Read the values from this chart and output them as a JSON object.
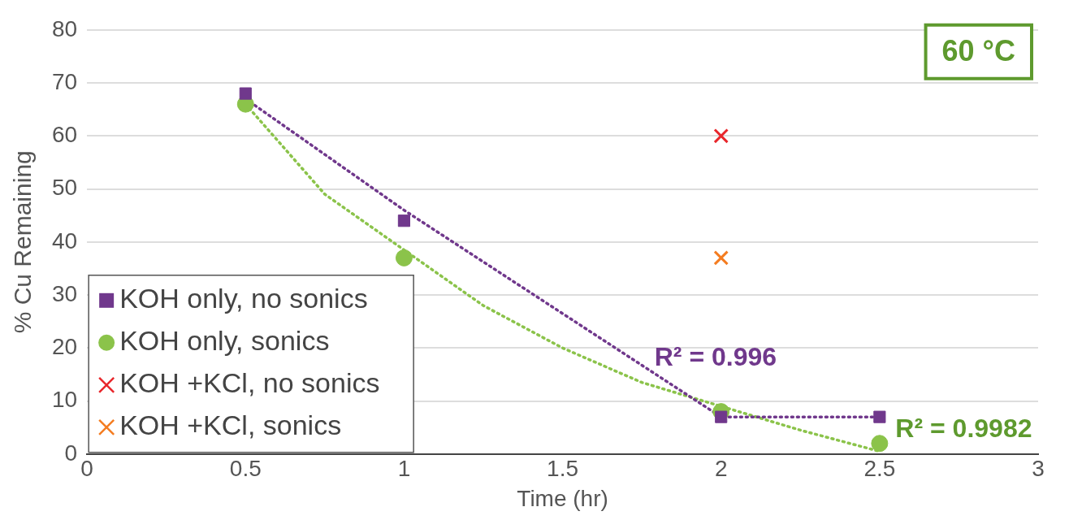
{
  "chart_data": {
    "type": "scatter",
    "xlabel": "Time (hr)",
    "ylabel": "% Cu Remaining",
    "xlim": [
      0,
      3
    ],
    "xticks": [
      0,
      0.5,
      1,
      1.5,
      2,
      2.5,
      3
    ],
    "ylim": [
      0,
      80
    ],
    "yticks": [
      0,
      10,
      20,
      30,
      40,
      50,
      60,
      70,
      80
    ],
    "grid": "y",
    "legend": "bottom left",
    "annotations": [
      "R² = 0.996",
      "R² = 0.9982",
      "60 °C"
    ],
    "series": [
      {
        "name": "KOH only, no sonics",
        "color": "#70388c",
        "marker": "square",
        "x": [
          0.5,
          1,
          2,
          2.5
        ],
        "values": [
          68,
          44,
          7,
          7
        ]
      },
      {
        "name": "KOH only, sonics",
        "color": "#8bc34a",
        "marker": "circle",
        "x": [
          0.5,
          1,
          2,
          2.5
        ],
        "values": [
          66,
          37,
          8,
          2
        ]
      },
      {
        "name": "KOH +KCl, no sonics",
        "color": "#e8262b",
        "marker": "cross",
        "x": [
          2
        ],
        "values": [
          60
        ]
      },
      {
        "name": "KOH +KCl, sonics",
        "color": "#f47c20",
        "marker": "cross",
        "x": [
          2
        ],
        "values": [
          37
        ]
      },
      {
        "type": "line",
        "color": "#70388c",
        "marker": "none",
        "line_style": "dotted",
        "x": [
          0.5,
          1,
          1.5,
          2,
          2.5
        ],
        "values": [
          67,
          46,
          26.5,
          7,
          7
        ]
      },
      {
        "type": "line",
        "color": "#8bc34a",
        "marker": "none",
        "line_style": "dotted",
        "x": [
          0.5,
          0.75,
          1,
          1.25,
          1.5,
          1.75,
          2,
          2.25,
          2.5
        ],
        "values": [
          66,
          49,
          38.5,
          28,
          20,
          13.5,
          9,
          4.5,
          0.5
        ]
      }
    ]
  }
}
